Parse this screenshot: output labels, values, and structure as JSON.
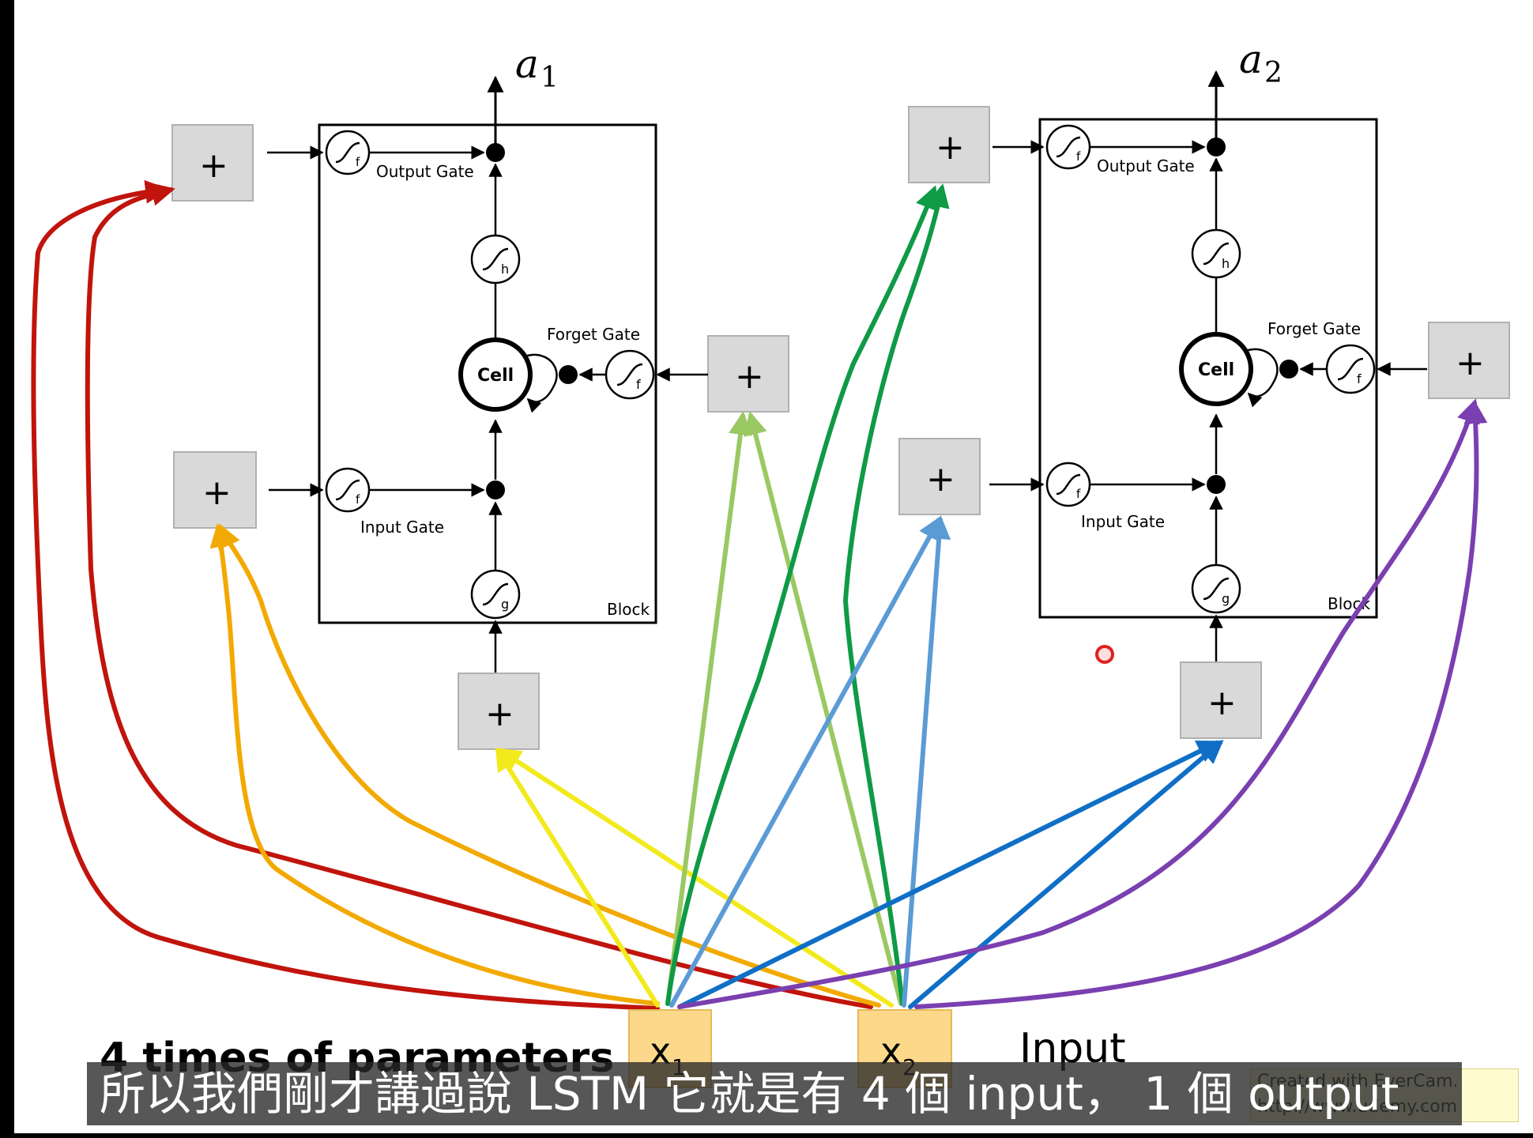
{
  "labels": {
    "a1": "a",
    "a1_sub": "1",
    "a2": "a",
    "a2_sub": "2",
    "output_gate": "Output Gate",
    "forget_gate": "Forget Gate",
    "input_gate": "Input Gate",
    "cell": "Cell",
    "block": "Block",
    "plus": "+",
    "f": "f",
    "h": "h",
    "g": "g",
    "x": "x",
    "x1_sub": "1",
    "x2_sub": "2",
    "input": "Input",
    "params": "4 times of parameters"
  },
  "caption": "所以我們剛才講過說 LSTM 它就是有 4 個 input， 1 個 output",
  "watermark": {
    "line1": "Created with EverCam.",
    "line2": "http://www.udemy.com"
  },
  "colors": {
    "red": "#c0140c",
    "orange": "#f2a900",
    "yellow": "#f2ea1c",
    "lightgreen": "#9ac863",
    "green": "#0f9a46",
    "lightblue": "#5b9bd5",
    "blue": "#0f6fc6",
    "purple": "#7a3fb0",
    "plusbox": "#d9d9d9",
    "xbox": "#fcd98a"
  }
}
